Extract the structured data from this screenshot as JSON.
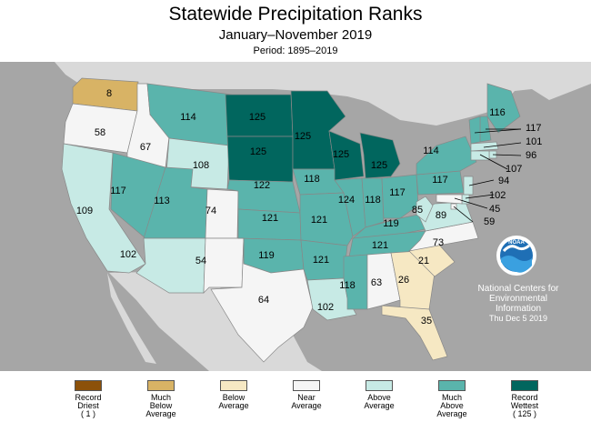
{
  "title": "Statewide Precipitation Ranks",
  "subtitle": "January–November 2019",
  "period": "Period: 1895–2019",
  "credit": {
    "line1": "National Centers for",
    "line2": "Environmental",
    "line3": "Information",
    "date": "Thu Dec  5 2019"
  },
  "logo_text": "NOAA",
  "colors": {
    "record_driest": "#8c510a",
    "much_below": "#d8b365",
    "below": "#f6e8c3",
    "near": "#f5f5f5",
    "above": "#c7eae5",
    "much_above": "#5ab4ac",
    "record_wettest": "#01665e",
    "ocean": "#a6a6a6",
    "neighbor": "#d9d9d9"
  },
  "legend": [
    {
      "key": "record_driest",
      "lines": [
        "Record",
        "Driest",
        "( 1 )"
      ]
    },
    {
      "key": "much_below",
      "lines": [
        "Much",
        "Below",
        "Average"
      ]
    },
    {
      "key": "below",
      "lines": [
        "Below",
        "Average",
        ""
      ]
    },
    {
      "key": "near",
      "lines": [
        "Near",
        "Average",
        ""
      ]
    },
    {
      "key": "above",
      "lines": [
        "Above",
        "Average",
        ""
      ]
    },
    {
      "key": "much_above",
      "lines": [
        "Much",
        "Above",
        "Average"
      ]
    },
    {
      "key": "record_wettest",
      "lines": [
        "Record",
        "Wettest",
        "( 125 )"
      ]
    }
  ],
  "states": [
    {
      "code": "WA",
      "rank": 8,
      "category": "much_below"
    },
    {
      "code": "OR",
      "rank": 58,
      "category": "near"
    },
    {
      "code": "ID",
      "rank": 67,
      "category": "near"
    },
    {
      "code": "CA",
      "rank": 109,
      "category": "above"
    },
    {
      "code": "NV",
      "rank": 117,
      "category": "much_above"
    },
    {
      "code": "MT",
      "rank": 114,
      "category": "much_above"
    },
    {
      "code": "WY",
      "rank": 108,
      "category": "above"
    },
    {
      "code": "UT",
      "rank": 113,
      "category": "much_above"
    },
    {
      "code": "AZ",
      "rank": 102,
      "category": "above"
    },
    {
      "code": "CO",
      "rank": 74,
      "category": "near"
    },
    {
      "code": "NM",
      "rank": 54,
      "category": "near"
    },
    {
      "code": "ND",
      "rank": 125,
      "category": "record_wettest"
    },
    {
      "code": "SD",
      "rank": 125,
      "category": "record_wettest"
    },
    {
      "code": "NE",
      "rank": 122,
      "category": "much_above"
    },
    {
      "code": "KS",
      "rank": 121,
      "category": "much_above"
    },
    {
      "code": "OK",
      "rank": 119,
      "category": "much_above"
    },
    {
      "code": "TX",
      "rank": 64,
      "category": "near"
    },
    {
      "code": "MN",
      "rank": 125,
      "category": "record_wettest"
    },
    {
      "code": "IA",
      "rank": 118,
      "category": "much_above"
    },
    {
      "code": "MO",
      "rank": 121,
      "category": "much_above"
    },
    {
      "code": "AR",
      "rank": 121,
      "category": "much_above"
    },
    {
      "code": "LA",
      "rank": 102,
      "category": "above"
    },
    {
      "code": "WI",
      "rank": 125,
      "category": "record_wettest"
    },
    {
      "code": "IL",
      "rank": 124,
      "category": "much_above"
    },
    {
      "code": "MI",
      "rank": 125,
      "category": "record_wettest"
    },
    {
      "code": "IN",
      "rank": 118,
      "category": "much_above"
    },
    {
      "code": "OH",
      "rank": 117,
      "category": "much_above"
    },
    {
      "code": "KY",
      "rank": 119,
      "category": "much_above"
    },
    {
      "code": "TN",
      "rank": 121,
      "category": "much_above"
    },
    {
      "code": "MS",
      "rank": 118,
      "category": "much_above"
    },
    {
      "code": "AL",
      "rank": 63,
      "category": "near"
    },
    {
      "code": "GA",
      "rank": 26,
      "category": "below"
    },
    {
      "code": "FL",
      "rank": 35,
      "category": "below"
    },
    {
      "code": "SC",
      "rank": 21,
      "category": "below"
    },
    {
      "code": "NC",
      "rank": 73,
      "category": "near"
    },
    {
      "code": "VA",
      "rank": 89,
      "category": "above"
    },
    {
      "code": "WV",
      "rank": 85,
      "category": "above"
    },
    {
      "code": "PA",
      "rank": 117,
      "category": "much_above"
    },
    {
      "code": "NY",
      "rank": 114,
      "category": "much_above"
    },
    {
      "code": "ME",
      "rank": 116,
      "category": "much_above"
    },
    {
      "code": "NH",
      "rank": 117,
      "category": "much_above"
    },
    {
      "code": "VT",
      "rank": 117,
      "category": "much_above"
    },
    {
      "code": "MA",
      "rank": 101,
      "category": "above"
    },
    {
      "code": "RI",
      "rank": 96,
      "category": "above"
    },
    {
      "code": "CT",
      "rank": 107,
      "category": "above"
    },
    {
      "code": "NJ",
      "rank": 94,
      "category": "above"
    },
    {
      "code": "DE",
      "rank": 102,
      "category": "above"
    },
    {
      "code": "MD",
      "rank": 45,
      "category": "near"
    },
    {
      "code": "DC",
      "rank": 59,
      "category": "near"
    }
  ]
}
